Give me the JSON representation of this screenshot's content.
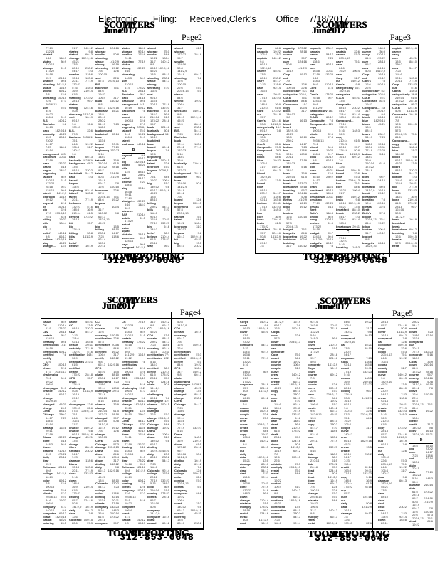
{
  "doc_header": {
    "segments": [
      "Electronic",
      "Filing:",
      "Received,Clerk's",
      "Office",
      "7/18/2017"
    ]
  },
  "branding": {
    "title_layers": [
      "SCOTT",
      "MYERS"
    ],
    "date_layers": [
      "June",
      "2017"
    ],
    "page_label": "Page",
    "footer_name_layers": [
      "TOOMEY",
      "REPORTING"
    ],
    "footer_phone": "312-853-0648"
  },
  "refs_pool": [
    "7:8",
    "12:6",
    "100:15",
    "22:6",
    "57:3",
    "203:6,13",
    "75:1",
    "84:6",
    "19:22",
    "106:4",
    "31:7",
    "140:12",
    "9:8",
    "66:13",
    "182:9,16",
    "45:21",
    "13:5",
    "88:10",
    "230:2",
    "54:17",
    "7:23",
    "118:6",
    "92:14",
    "163:8",
    "20:11",
    "77:19",
    "132:23",
    "5:16",
    "148:3",
    "36:9",
    "210:14",
    "61:5",
    "173:22",
    "28:18",
    "95:7",
    "124:16",
    "50:8",
    "141:2,9",
    "16:19",
    "69:12"
  ],
  "quadrants": [
    {
      "id": "top-left",
      "page_digit": "2",
      "section": {
        "column": 3,
        "line": 30,
        "letter": "B"
      },
      "words": [
        "stay",
        "straight...",
        "advance",
        "ASF",
        "subtle",
        "asked",
        "aside",
        "squat",
        "statutes",
        "someone",
        "says",
        "assigned",
        "subject",
        "asking",
        "assumption",
        "standard",
        "studies",
        "strange",
        "stamp",
        "started",
        "stated",
        "storage",
        "smaller",
        "standing",
        "statue",
        "strong",
        "stressing",
        "sort",
        "B.S.",
        "Bachelor",
        "back",
        "basically",
        "background",
        "backdraft",
        "base",
        "based",
        "begun",
        "beginning",
        "takeoff",
        "talent",
        "bedroom",
        "beyond",
        "bit",
        "big",
        "billing",
        "bills",
        "bin",
        "belief",
        "believe"
      ]
    },
    {
      "id": "top-right",
      "page_digit": "3",
      "section": {
        "column": 3,
        "line": 55,
        "letter": "C"
      },
      "words": [
        "block",
        "blue",
        "blood",
        "board",
        "blow",
        "bottom",
        "box",
        "born",
        "bone",
        "brain",
        "breakfast",
        "break",
        "breakdown",
        "breaking",
        "breaks",
        "Brett",
        "Beth's",
        "bridge",
        "bring",
        "broken",
        "budget",
        "budget's",
        "budgeting",
        "bulldozer",
        "building",
        "bunch",
        "burger",
        "Calman",
        "calculations",
        "calendar",
        "call",
        "called",
        "calling",
        "calls",
        "came",
        "can",
        "cap",
        "capacity",
        "captain",
        "career",
        "carry",
        "care",
        "cars",
        "Corp",
        "cut",
        "Cam's",
        "categorically",
        "categories",
        "C.A.B",
        "Composite",
        "Compound...",
        "copy"
      ]
    },
    {
      "id": "bottom-left",
      "page_digit": "4",
      "section": null,
      "words": [
        "category",
        "cause",
        "CC",
        "CD2",
        "certain",
        "certainly",
        "certification",
        "certificates",
        "certified",
        "certify",
        "CFO",
        "chain",
        "challenging",
        "champagne",
        "chance",
        "change",
        "changed",
        "charge",
        "Clerk",
        "Chicago",
        "damage",
        "Diana",
        "done",
        "down",
        "dealing",
        "daily",
        "dear",
        "Colorado",
        "college",
        "color",
        "coming",
        "clients",
        "company",
        "computer",
        "coast",
        "casual",
        "catering",
        "conduct",
        "defense",
        "confidential",
        "complete",
        "employee",
        "emphasis",
        "empty",
        "corporal",
        "corporate",
        "cognitive",
        "counsel",
        "duty",
        "dollars",
        "door",
        "draft",
        "drainage",
        "Dillon",
        "City",
        "data",
        "deadline",
        "deflection",
        "Dawn"
      ]
    },
    {
      "id": "bottom-right",
      "page_digit": "5",
      "section": {
        "column": 5,
        "line": 35,
        "letter": "D"
      },
      "words": [
        "cost",
        "control",
        "costs",
        "counting",
        "continue",
        "continued",
        "connection",
        "coach",
        "comfort",
        "contract",
        "counsel",
        "correct",
        "corrections",
        "Cook",
        "Coordinator",
        "copied",
        "CONTROL...",
        "Corps",
        "court",
        "cover",
        "compared",
        "car",
        "corporate",
        "Cogs",
        "count",
        "course",
        "county",
        "couple",
        "curve",
        "crew",
        "cross",
        "create",
        "credit",
        "copy",
        "cup",
        "cure",
        "cut",
        "daily",
        "data",
        "damage",
        "date",
        "dead",
        "deal",
        "dealt",
        "done",
        "down",
        "change",
        "mistake",
        "multiply",
        "rental",
        "metal"
      ]
    }
  ]
}
